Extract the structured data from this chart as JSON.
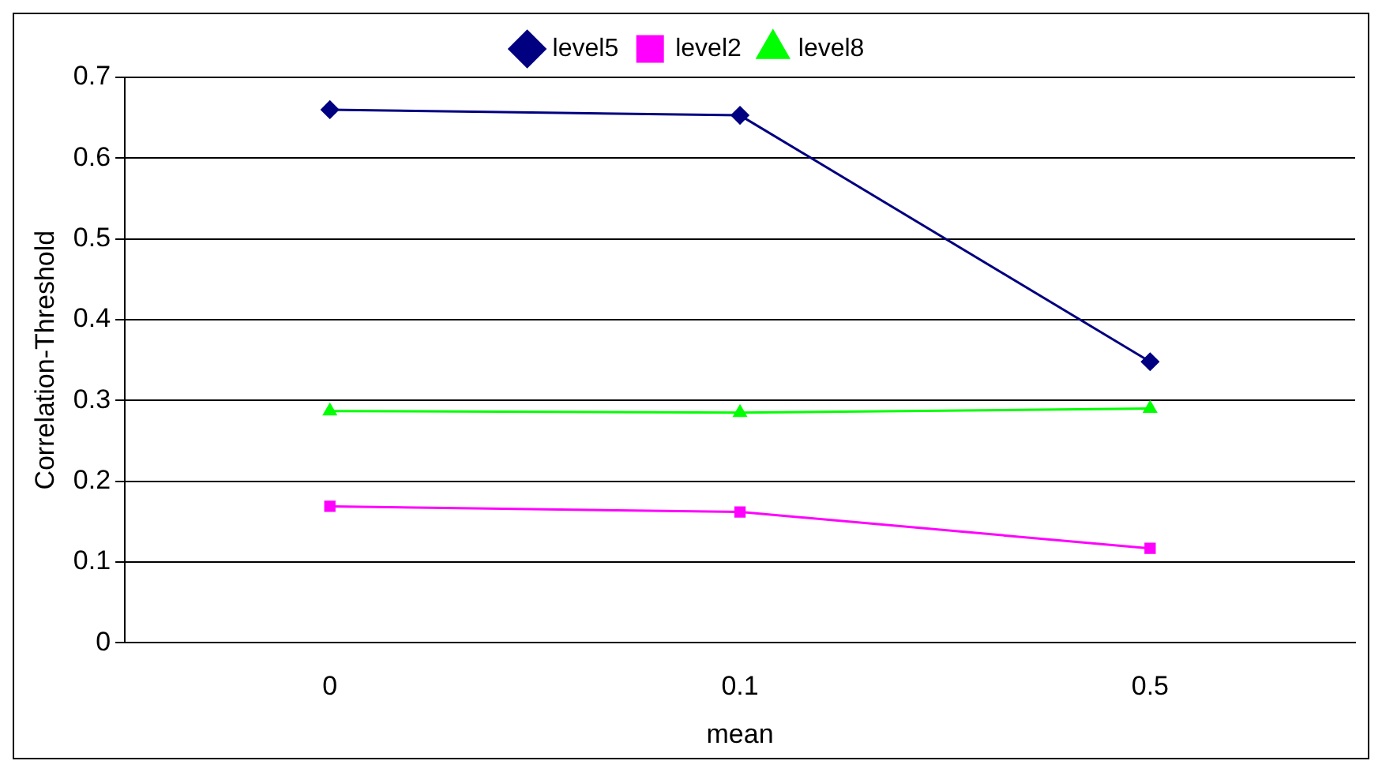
{
  "chart_data": {
    "type": "line",
    "xlabel": "mean",
    "ylabel": "Correlation-Threshold",
    "categories": [
      "0",
      "0.1",
      "0.5"
    ],
    "series": [
      {
        "name": "level5",
        "color": "#000080",
        "marker": "diamond",
        "values": [
          0.66,
          0.653,
          0.348
        ]
      },
      {
        "name": "level2",
        "color": "#ff00ff",
        "marker": "square",
        "values": [
          0.169,
          0.162,
          0.117
        ]
      },
      {
        "name": "level8",
        "color": "#00ff00",
        "marker": "triangle",
        "values": [
          0.287,
          0.285,
          0.29
        ]
      }
    ],
    "ylim": [
      0,
      0.7
    ],
    "yticks": [
      0,
      0.1,
      0.2,
      0.3,
      0.4,
      0.5,
      0.6,
      0.7
    ],
    "grid": "y",
    "legend": "top",
    "line_style": "solid"
  }
}
